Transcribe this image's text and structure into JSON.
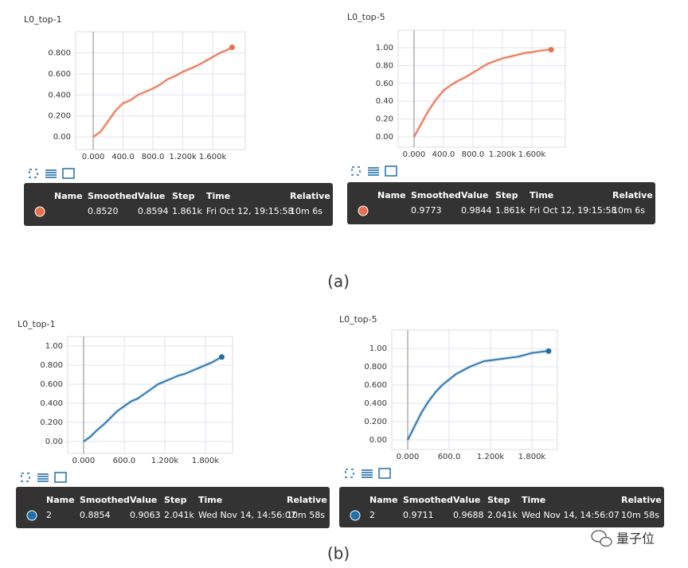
{
  "chart_data": [
    {
      "type": "line",
      "title": "L0_top-1",
      "x": [
        0,
        100,
        200,
        300,
        400,
        500,
        600,
        700,
        800,
        900,
        1000,
        1100,
        1200,
        1300,
        1400,
        1500,
        1600,
        1700,
        1800,
        1861
      ],
      "series": [
        {
          "color": "#e8704d",
          "values": [
            0,
            0.05,
            0.15,
            0.25,
            0.32,
            0.35,
            0.4,
            0.43,
            0.46,
            0.5,
            0.55,
            0.58,
            0.62,
            0.65,
            0.68,
            0.72,
            0.76,
            0.8,
            0.83,
            0.852
          ]
        }
      ],
      "xlim": [
        -235,
        2037
      ],
      "ylim": [
        -0.12,
        1.0
      ],
      "xticks": [
        {
          "value": 0,
          "label": "0.000"
        },
        {
          "value": 400,
          "label": "400.0"
        },
        {
          "value": 800,
          "label": "800.0"
        },
        {
          "value": 1200,
          "label": "1.200k"
        },
        {
          "value": 1600,
          "label": "1.600k"
        }
      ],
      "yticks": [
        {
          "value": 0,
          "label": "0.00"
        },
        {
          "value": 0.2,
          "label": "0.200"
        },
        {
          "value": 0.4,
          "label": "0.400"
        },
        {
          "value": 0.6,
          "label": "0.600"
        },
        {
          "value": 0.8,
          "label": "0.800"
        }
      ],
      "grid": true
    },
    {
      "type": "line",
      "title": "L0_top-5",
      "x": [
        0,
        100,
        200,
        300,
        400,
        500,
        600,
        700,
        800,
        900,
        1000,
        1100,
        1200,
        1300,
        1400,
        1500,
        1600,
        1700,
        1800,
        1861
      ],
      "series": [
        {
          "color": "#e8704d",
          "values": [
            0,
            0.15,
            0.3,
            0.42,
            0.52,
            0.58,
            0.63,
            0.67,
            0.72,
            0.77,
            0.82,
            0.85,
            0.88,
            0.9,
            0.92,
            0.94,
            0.95,
            0.965,
            0.975,
            0.977
          ]
        }
      ],
      "xlim": [
        -216,
        2054
      ],
      "ylim": [
        -0.116,
        1.196
      ],
      "xticks": [
        {
          "value": 0,
          "label": "0.000"
        },
        {
          "value": 400,
          "label": "400.0"
        },
        {
          "value": 800,
          "label": "800.0"
        },
        {
          "value": 1200,
          "label": "1.200k"
        },
        {
          "value": 1600,
          "label": "1.600k"
        }
      ],
      "yticks": [
        {
          "value": 0,
          "label": "0.00"
        },
        {
          "value": 0.2,
          "label": "0.20"
        },
        {
          "value": 0.4,
          "label": "0.40"
        },
        {
          "value": 0.6,
          "label": "0.60"
        },
        {
          "value": 0.8,
          "label": "0.80"
        },
        {
          "value": 1,
          "label": "1.00"
        }
      ],
      "grid": true
    },
    {
      "type": "line",
      "title": "L0_top-1",
      "x": [
        0,
        100,
        200,
        300,
        400,
        500,
        600,
        700,
        800,
        900,
        1000,
        1100,
        1200,
        1300,
        1400,
        1500,
        1600,
        1700,
        1800,
        1900,
        2000,
        2041
      ],
      "series": [
        {
          "color": "#1f6fa8",
          "values": [
            0,
            0.05,
            0.12,
            0.18,
            0.25,
            0.32,
            0.37,
            0.42,
            0.45,
            0.5,
            0.55,
            0.6,
            0.63,
            0.66,
            0.69,
            0.71,
            0.74,
            0.77,
            0.8,
            0.83,
            0.87,
            0.885
          ]
        }
      ],
      "xlim": [
        -235,
        2200
      ],
      "ylim": [
        -0.125,
        1.1
      ],
      "xticks": [
        {
          "value": 0,
          "label": "0.000"
        },
        {
          "value": 600,
          "label": "600.0"
        },
        {
          "value": 1200,
          "label": "1.200k"
        },
        {
          "value": 1800,
          "label": "1.800k"
        }
      ],
      "yticks": [
        {
          "value": 0,
          "label": "0.00"
        },
        {
          "value": 0.2,
          "label": "0.200"
        },
        {
          "value": 0.4,
          "label": "0.400"
        },
        {
          "value": 0.6,
          "label": "0.600"
        },
        {
          "value": 0.8,
          "label": "0.800"
        },
        {
          "value": 1,
          "label": "1.00"
        }
      ],
      "grid": true
    },
    {
      "type": "line",
      "title": "L0_top-5",
      "x": [
        0,
        100,
        200,
        300,
        400,
        500,
        600,
        700,
        800,
        900,
        1000,
        1100,
        1200,
        1300,
        1400,
        1500,
        1600,
        1700,
        1800,
        1900,
        2000,
        2041
      ],
      "series": [
        {
          "color": "#1f6fa8",
          "values": [
            0,
            0.15,
            0.3,
            0.42,
            0.52,
            0.6,
            0.66,
            0.72,
            0.76,
            0.8,
            0.83,
            0.86,
            0.87,
            0.88,
            0.89,
            0.9,
            0.91,
            0.93,
            0.95,
            0.96,
            0.97,
            0.971
          ]
        }
      ],
      "xlim": [
        -231,
        2169
      ],
      "ylim": [
        -0.104,
        1.2
      ],
      "xticks": [
        {
          "value": 0,
          "label": "0.000"
        },
        {
          "value": 600,
          "label": "600.0"
        },
        {
          "value": 1200,
          "label": "1.200k"
        },
        {
          "value": 1800,
          "label": "1.800k"
        }
      ],
      "yticks": [
        {
          "value": 0,
          "label": "0.00"
        },
        {
          "value": 0.2,
          "label": "0.200"
        },
        {
          "value": 0.4,
          "label": "0.400"
        },
        {
          "value": 0.6,
          "label": "0.600"
        },
        {
          "value": 0.8,
          "label": "0.800"
        },
        {
          "value": 1,
          "label": "1.00"
        }
      ],
      "grid": true
    }
  ],
  "tooltip_headers": [
    "Name",
    "Smoothed",
    "Value",
    "Step",
    "Time",
    "Relative"
  ],
  "tooltips": [
    {
      "cells": [
        "0.8520",
        "0.8594",
        "1.861k",
        "Fri Oct 12, 19:15:58",
        "10m 6s"
      ]
    },
    {
      "cells": [
        "0.9773",
        "0.9844",
        "1.861k",
        "Fri Oct 12, 19:15:58",
        "10m 6s"
      ]
    },
    {
      "name": "2",
      "cells": [
        "0.8854",
        "0.9063",
        "2.041k",
        "Wed Nov 14, 14:56:07",
        "10m 58s"
      ]
    },
    {
      "name": "2",
      "cells": [
        "0.9711",
        "0.9688",
        "2.041k",
        "Wed Nov 14, 14:56:07",
        "10m 58s"
      ]
    }
  ],
  "captions": [
    "(a)",
    "(b)"
  ],
  "watermark": "量子位"
}
